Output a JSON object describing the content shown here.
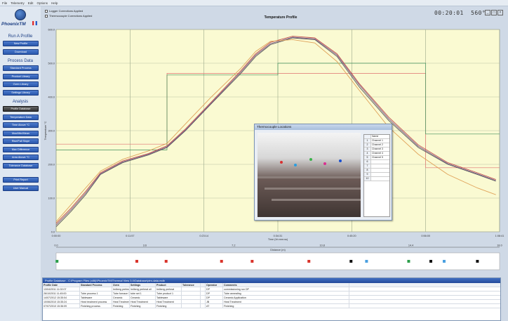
{
  "menu": [
    "File",
    "Telemetry",
    "Edit",
    "Options",
    "Help"
  ],
  "app": {
    "name": "PhoenixTM"
  },
  "sidebar": {
    "sections": [
      {
        "title": "Run A Profile",
        "buttons": [
          "New Profile",
          "Download"
        ]
      },
      {
        "title": "Process Data",
        "buttons": [
          "Standard Process",
          "Product Library",
          "Oven Library",
          "Settings Library"
        ]
      },
      {
        "title": "Analysis",
        "buttons": [
          "Profile Database",
          "Temperature Data",
          "Time Above °C",
          "Max/Min/Mean",
          "Rise/Fall Slope",
          "Max Difference",
          "Area Above °C",
          "Tolerance Database"
        ]
      },
      {
        "title": "",
        "buttons": [
          "Print Report",
          "User Manual"
        ]
      }
    ],
    "active": "Profile Database"
  },
  "toolbar": {
    "checkbox1": "Logger Corrections Applied",
    "checkbox2": "Thermocouple Corrections Applied",
    "clock": "00:20:01",
    "temp": "560°C",
    "icons": [
      "minimize-icon",
      "restore-icon",
      "close-icon"
    ]
  },
  "chart_data": {
    "type": "line",
    "title": "Temperature Profile",
    "xlabel": "Time (hh:mm:ss)",
    "ylabel": "Temperature °C",
    "secondary_xlabel": "Distance (m)",
    "ylim": [
      0,
      600
    ],
    "yticks": [
      "0.0",
      "100.0",
      "200.0",
      "300.0",
      "400.0",
      "500.0",
      "600.0"
    ],
    "xlim": [
      0,
      1200
    ],
    "xticks": [
      "0:00:00",
      "0:11:57",
      "0:23:14",
      "0:34:31",
      "0:45:20",
      "0:56:00",
      "1:08:41"
    ],
    "distance_ticks": [
      "0.0",
      "3.6",
      "7.2",
      "10.8",
      "14.4",
      "18.0"
    ],
    "grid": true,
    "series": [
      {
        "color": "#5a5a5a",
        "x": [
          0,
          40,
          80,
          120,
          180,
          250,
          300,
          350,
          420,
          500,
          540,
          580,
          640,
          700,
          760,
          820,
          900,
          980,
          1060,
          1140,
          1190
        ],
        "y": [
          15,
          60,
          110,
          170,
          205,
          228,
          250,
          300,
          380,
          470,
          520,
          555,
          575,
          570,
          520,
          430,
          330,
          250,
          200,
          170,
          150
        ]
      },
      {
        "color": "#c0504d",
        "x": [
          0,
          40,
          80,
          120,
          180,
          250,
          300,
          350,
          420,
          500,
          540,
          580,
          640,
          700,
          760,
          820,
          900,
          980,
          1060,
          1140,
          1190
        ],
        "y": [
          25,
          70,
          120,
          175,
          210,
          232,
          255,
          305,
          385,
          478,
          528,
          562,
          580,
          575,
          528,
          440,
          340,
          258,
          205,
          175,
          155
        ]
      },
      {
        "color": "#7a5a8a",
        "x": [
          0,
          40,
          80,
          120,
          180,
          250,
          300,
          350,
          420,
          500,
          540,
          580,
          640,
          700,
          760,
          820,
          900,
          980,
          1060,
          1140,
          1190
        ],
        "y": [
          20,
          65,
          115,
          172,
          207,
          230,
          252,
          302,
          382,
          474,
          524,
          558,
          577,
          572,
          524,
          436,
          335,
          254,
          202,
          172,
          152
        ]
      },
      {
        "color": "#e0a35a",
        "x": [
          0,
          40,
          80,
          120,
          180,
          250,
          300,
          350,
          420,
          500,
          540,
          580,
          640,
          700,
          760,
          820,
          900,
          980,
          1060,
          1140,
          1190
        ],
        "y": [
          30,
          80,
          130,
          180,
          215,
          240,
          262,
          320,
          400,
          485,
          535,
          565,
          570,
          560,
          505,
          420,
          310,
          230,
          170,
          130,
          110
        ]
      }
    ],
    "reference_lines": [
      {
        "color": "#e07070",
        "y": [
          260,
          260,
          260,
          470,
          470,
          470,
          470,
          470,
          470,
          470,
          190,
          190
        ]
      },
      {
        "color": "#3f8f5a",
        "y": [
          243,
          243,
          243,
          465,
          465,
          465,
          500,
          500,
          500,
          500,
          290,
          290
        ]
      }
    ],
    "markers": [
      {
        "x": 0.2,
        "color": "#2c9e4a"
      },
      {
        "x": 18.2,
        "color": "#d9332a"
      },
      {
        "x": 24.8,
        "color": "#d9332a"
      },
      {
        "x": 37.3,
        "color": "#d9332a"
      },
      {
        "x": 44.2,
        "color": "#d9332a"
      },
      {
        "x": 57.0,
        "color": "#d9332a"
      },
      {
        "x": 66.5,
        "color": "#111111"
      },
      {
        "x": 70.0,
        "color": "#4aa0e0"
      },
      {
        "x": 79.5,
        "color": "#2c9e4a"
      },
      {
        "x": 84.5,
        "color": "#111111"
      },
      {
        "x": 87.5,
        "color": "#4aa0e0"
      },
      {
        "x": 95.0,
        "color": "#111111"
      }
    ]
  },
  "thermocouple_window": {
    "title": "Thermocouple Locations",
    "header": "Name",
    "rows": [
      {
        "n": "1",
        "name": "Channel 1"
      },
      {
        "n": "2",
        "name": "Channel 2"
      },
      {
        "n": "3",
        "name": "Channel 3"
      },
      {
        "n": "4",
        "name": "Channel 4"
      },
      {
        "n": "5",
        "name": "Channel 5"
      },
      {
        "n": "6",
        "name": ""
      },
      {
        "n": "7",
        "name": ""
      },
      {
        "n": "8",
        "name": ""
      },
      {
        "n": "9",
        "name": ""
      },
      {
        "n": "10",
        "name": ""
      }
    ]
  },
  "database": {
    "title": "Profile Database - C:\\Program Files (x86)\\PhoenixTM\\Thermal View 3.0\\Database\\ptm-data.mdb",
    "columns": [
      "Profile Date",
      "Standard Process",
      "Oven",
      "Settings",
      "Product",
      "Tolerance",
      "",
      "Operator",
      "Comments"
    ],
    "rows": [
      [
        "13/04/2011 11:02:07",
        "",
        "Imlberg preheat oil",
        "Imlberg preheat oil",
        "Imlberg preheat",
        "",
        "",
        "DP",
        "commissioning run DP"
      ],
      [
        "26/10/2011 11:45:00",
        "Tube process 1",
        "Tube furnace 1",
        "tube set 1",
        "Tube product 1",
        "",
        "",
        "DP",
        "Tube annealing"
      ],
      [
        "14/07/2012 15:35:04",
        "Tableware",
        "Ceramic",
        "Ceramic",
        "Tableware",
        "",
        "",
        "DP",
        "Ceramic Application"
      ],
      [
        "10/06/2010 15:35:24",
        "Heat treatment process",
        "Heat Treatment",
        "Heat Treatment",
        "Heat Treatment",
        "",
        "",
        "JB",
        "Heat Treatment"
      ],
      [
        "07/07/2010 15:36:09",
        "Finishing process",
        "Finishing",
        "Finishing",
        "Finishing",
        "",
        "",
        "AT",
        "Finishing"
      ]
    ]
  }
}
